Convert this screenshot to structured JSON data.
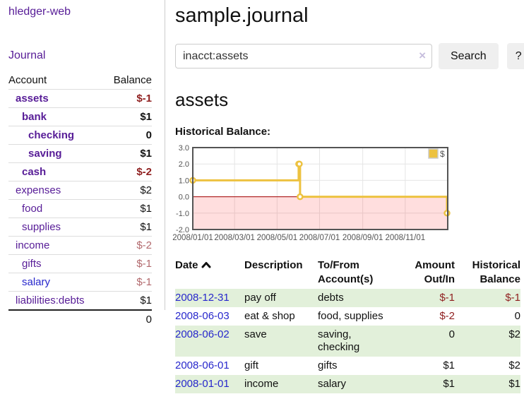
{
  "app": {
    "title": "hledger-web"
  },
  "sidebar": {
    "journal_label": "Journal",
    "accounts_table": {
      "headers": {
        "account": "Account",
        "balance": "Balance"
      },
      "rows": [
        {
          "name": "assets",
          "balance": "$-1",
          "indent": 1,
          "bold": true,
          "link_color": "purple",
          "amount_class": "neg-strong"
        },
        {
          "name": "bank",
          "balance": "$1",
          "indent": 2,
          "bold": true,
          "link_color": "purple",
          "amount_class": ""
        },
        {
          "name": "checking",
          "balance": "0",
          "indent": 3,
          "bold": true,
          "link_color": "purple",
          "amount_class": ""
        },
        {
          "name": "saving",
          "balance": "$1",
          "indent": 3,
          "bold": true,
          "link_color": "purple",
          "amount_class": ""
        },
        {
          "name": "cash",
          "balance": "$-2",
          "indent": 2,
          "bold": true,
          "link_color": "purple",
          "amount_class": "neg-strong"
        },
        {
          "name": "expenses",
          "balance": "$2",
          "indent": 1,
          "bold": false,
          "link_color": "purple",
          "amount_class": ""
        },
        {
          "name": "food",
          "balance": "$1",
          "indent": 2,
          "bold": false,
          "link_color": "purple",
          "amount_class": ""
        },
        {
          "name": "supplies",
          "balance": "$1",
          "indent": 2,
          "bold": false,
          "link_color": "purple",
          "amount_class": ""
        },
        {
          "name": "income",
          "balance": "$-2",
          "indent": 1,
          "bold": false,
          "link_color": "purple",
          "amount_class": "neg-soft"
        },
        {
          "name": "gifts",
          "balance": "$-1",
          "indent": 2,
          "bold": false,
          "link_color": "purple",
          "amount_class": "neg-soft"
        },
        {
          "name": "salary",
          "balance": "$-1",
          "indent": 2,
          "bold": false,
          "link_color": "blue",
          "amount_class": "neg-soft"
        },
        {
          "name": "liabilities:debts",
          "balance": "$1",
          "indent": 1,
          "bold": false,
          "link_color": "purple",
          "amount_class": ""
        }
      ],
      "total": "0"
    }
  },
  "main": {
    "title": "sample.journal",
    "search": {
      "value": "inacct:assets",
      "clear_icon": "×",
      "search_button_label": "Search",
      "help_button_label": "?"
    },
    "account_heading": "assets",
    "chart_label": "Historical Balance:",
    "register_table": {
      "headers": {
        "date": "Date",
        "description": "Description",
        "accounts": "To/From Account(s)",
        "amount": "Amount Out/In",
        "balance": "Historical Balance"
      },
      "rows": [
        {
          "date": "2008-12-31",
          "description": "pay off",
          "accounts": "debts",
          "amount": "$-1",
          "balance": "$-1",
          "amount_neg": true,
          "balance_neg": true,
          "shaded": true
        },
        {
          "date": "2008-06-03",
          "description": "eat & shop",
          "accounts": "food, supplies",
          "amount": "$-2",
          "balance": "0",
          "amount_neg": true,
          "balance_neg": false,
          "shaded": false
        },
        {
          "date": "2008-06-02",
          "description": "save",
          "accounts": "saving, checking",
          "amount": "0",
          "balance": "$2",
          "amount_neg": false,
          "balance_neg": false,
          "shaded": true
        },
        {
          "date": "2008-06-01",
          "description": "gift",
          "accounts": "gifts",
          "amount": "$1",
          "balance": "$2",
          "amount_neg": false,
          "balance_neg": false,
          "shaded": false
        },
        {
          "date": "2008-01-01",
          "description": "income",
          "accounts": "salary",
          "amount": "$1",
          "balance": "$1",
          "amount_neg": false,
          "balance_neg": false,
          "shaded": true
        }
      ]
    }
  },
  "chart_data": {
    "type": "line",
    "step": true,
    "title": "Historical Balance:",
    "series": [
      {
        "name": "$",
        "color": "#edc240",
        "points": [
          [
            "2008-01-01",
            1
          ],
          [
            "2008-06-01",
            2
          ],
          [
            "2008-06-02",
            2
          ],
          [
            "2008-06-03",
            0
          ],
          [
            "2008-12-31",
            -1
          ]
        ]
      }
    ],
    "x_range": [
      "2008-01-01",
      "2009-01-01"
    ],
    "ylim": [
      -2,
      3
    ],
    "yticks": [
      3,
      2,
      1,
      0,
      -1,
      -2
    ],
    "xticks": [
      {
        "label": "2008/01/01",
        "date": "2008-01-01"
      },
      {
        "label": "2008/03/01",
        "date": "2008-03-01"
      },
      {
        "label": "2008/05/01",
        "date": "2008-05-01"
      },
      {
        "label": "2008/07/01",
        "date": "2008-07-01"
      },
      {
        "label": "2008/09/01",
        "date": "2008-09-01"
      },
      {
        "label": "2008/11/01",
        "date": "2008-11-01"
      }
    ],
    "legend": {
      "position": "top-right",
      "label": "$"
    },
    "grid_color": "#e5e5e5",
    "border_color": "#545454",
    "negative_region_color": "rgba(255,0,0,0.13)",
    "zero_line_color": "#a40000",
    "tick_label_color": "#545454"
  }
}
